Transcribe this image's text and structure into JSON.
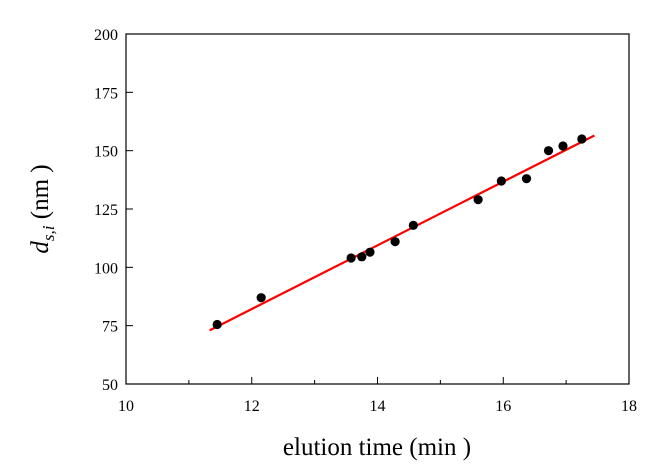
{
  "chart_data": {
    "type": "scatter",
    "xlim": [
      10,
      18
    ],
    "ylim": [
      50,
      200
    ],
    "x_ticks": [
      10,
      12,
      14,
      16,
      18
    ],
    "x_tick_labels": [
      "10",
      "12",
      "14",
      "16",
      "18"
    ],
    "x_minor_ticks": [
      11,
      13,
      15,
      17
    ],
    "y_ticks": [
      50,
      75,
      100,
      125,
      150,
      175,
      200
    ],
    "y_tick_labels": [
      "50",
      "75",
      "100",
      "125",
      "150",
      "175",
      "200"
    ],
    "xlabel": "elution time (min )",
    "ylabel": {
      "main": "d",
      "subscript": "s,i",
      "rest": " (nm )"
    },
    "grid": false,
    "series": [
      {
        "type": "scatter",
        "color": "#000000",
        "x": [
          11.45,
          12.15,
          13.58,
          13.75,
          13.88,
          14.28,
          14.57,
          15.6,
          15.97,
          16.37,
          16.72,
          16.95,
          17.25
        ],
        "y": [
          75.5,
          87,
          104,
          104.5,
          106.5,
          111,
          118,
          129,
          137,
          138,
          150,
          152,
          155
        ]
      },
      {
        "type": "line",
        "color": "#ff0000",
        "x": [
          11.33,
          17.45
        ],
        "y": [
          73,
          156.5
        ]
      }
    ]
  }
}
